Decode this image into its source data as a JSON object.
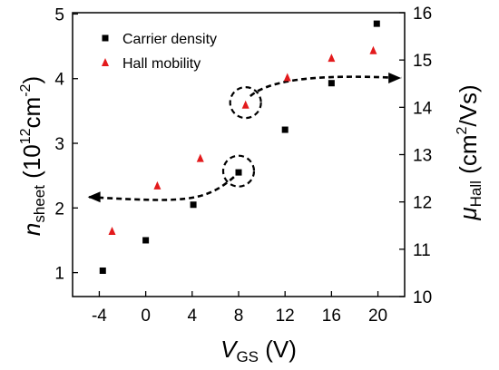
{
  "chart_data": {
    "type": "scatter",
    "title": "",
    "x_axis": {
      "label_main": "V",
      "label_sub": "GS",
      "label_unit": " (V)",
      "ticks": [
        -4,
        0,
        4,
        8,
        12,
        16,
        20
      ],
      "tick_labels": [
        "-4",
        "0",
        "4",
        "8",
        "12",
        "16",
        "20"
      ],
      "range": [
        -6.3,
        22.3
      ]
    },
    "y_left": {
      "label_main": "n",
      "label_sub": "sheet",
      "label_unit_pre": " (10",
      "label_exp": "12",
      "label_unit_mid": "cm",
      "label_exp2": "-2",
      "label_unit_post": ")",
      "ticks": [
        1,
        2,
        3,
        4,
        5
      ],
      "tick_labels": [
        "1",
        "2",
        "3",
        "4",
        "5"
      ],
      "range": [
        0.63,
        5.02
      ]
    },
    "y_right": {
      "label_main": "μ",
      "label_sub": "Hall",
      "label_unit_pre": " (cm",
      "label_exp": "2",
      "label_unit_post": "/Vs)",
      "ticks": [
        10,
        11,
        12,
        13,
        14,
        15,
        16
      ],
      "tick_labels": [
        "10",
        "11",
        "12",
        "13",
        "14",
        "15",
        "16"
      ],
      "range": [
        10.0,
        16.0
      ]
    },
    "legend": {
      "position": "top-left",
      "entries": [
        "Carrier density",
        "Hall mobility"
      ]
    },
    "series": [
      {
        "name": "Carrier density",
        "axis": "left",
        "marker": "square",
        "color": "#000000",
        "x": [
          -3.7,
          0.0,
          4.1,
          8.0,
          12.0,
          16.0,
          19.9
        ],
        "y": [
          1.03,
          1.5,
          2.05,
          2.55,
          3.21,
          3.93,
          4.85
        ]
      },
      {
        "name": "Hall mobility",
        "axis": "right",
        "marker": "triangle",
        "color": "#e31a1c",
        "x": [
          -2.9,
          1.0,
          4.7,
          8.6,
          12.2,
          16.0,
          19.6
        ],
        "y": [
          11.38,
          12.34,
          12.92,
          14.05,
          14.63,
          15.04,
          15.2
        ]
      }
    ],
    "annotations": [
      {
        "type": "hysteresis-arrow",
        "direction": "left",
        "axis": "left",
        "path": [
          [
            7.6,
            2.48
          ],
          [
            5,
            2.07
          ],
          [
            3,
            2.09
          ],
          [
            -5,
            2.17
          ]
        ],
        "circle_center": [
          8.0,
          2.57
        ]
      },
      {
        "type": "hysteresis-arrow",
        "direction": "right",
        "axis": "left",
        "path": [
          [
            9.0,
            3.73
          ],
          [
            11,
            4.03
          ],
          [
            16,
            4.06
          ],
          [
            22,
            4.01
          ]
        ],
        "circle_center": [
          8.6,
          3.63
        ]
      }
    ]
  }
}
